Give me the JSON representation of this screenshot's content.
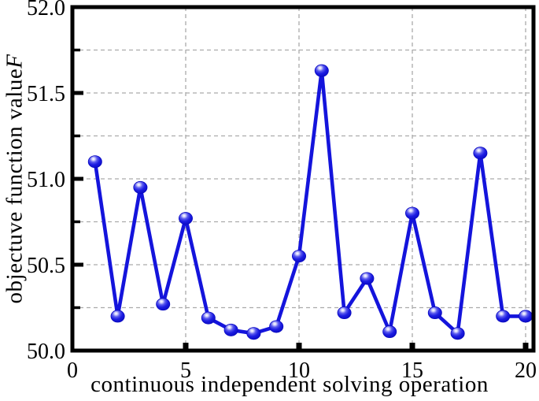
{
  "chart_data": {
    "type": "line",
    "title": "",
    "xlabel": "continuous independent solving operation",
    "ylabel": "objectuve function valueF",
    "ylabel_parts": [
      "objectuve function value",
      "F"
    ],
    "x": [
      1,
      2,
      3,
      4,
      5,
      6,
      7,
      8,
      9,
      10,
      11,
      12,
      13,
      14,
      15,
      16,
      17,
      18,
      19,
      20
    ],
    "y": [
      51.1,
      50.2,
      50.95,
      50.27,
      50.77,
      50.19,
      50.12,
      50.1,
      50.14,
      50.55,
      51.63,
      50.22,
      50.42,
      50.11,
      50.8,
      50.22,
      50.1,
      51.15,
      50.2,
      50.2
    ],
    "xlim": [
      0,
      20.35
    ],
    "ylim": [
      50.0,
      52.0
    ],
    "x_ticks": {
      "values": [
        0,
        5,
        10,
        15,
        20
      ],
      "labels": [
        "0",
        "5",
        "10",
        "15",
        "20"
      ]
    },
    "y_ticks": {
      "values": [
        52.0,
        51.5,
        51.0,
        50.5,
        50.0
      ],
      "labels": [
        "52.0",
        "51.5",
        "51.0",
        "50.5",
        "50.0"
      ]
    },
    "y_minor_ticks": [
      51.75,
      51.25,
      50.75,
      50.25
    ],
    "grid": {
      "style": "dashed",
      "color": "#ABABAB",
      "horizontal_at": [
        51.75,
        51.5,
        51.25,
        51.0,
        50.75,
        50.5,
        50.25
      ],
      "vertical_at": [
        5,
        10,
        15,
        20
      ]
    },
    "legend": null,
    "marker_style": "sphere",
    "colors": {
      "line": "#1414DC",
      "marker_body": "#1C1CE2",
      "marker_rim": "#0909C0",
      "marker_highlight": "#FFFFFF",
      "axis_frame": "#000000",
      "background": "#FFFFFF"
    }
  }
}
